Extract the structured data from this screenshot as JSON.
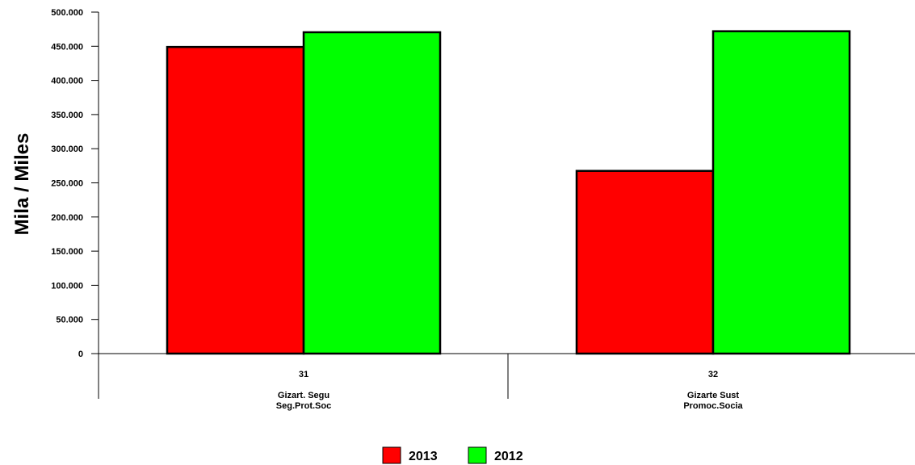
{
  "chart_data": {
    "type": "bar",
    "ylabel": "Mila / Miles",
    "ylim": [
      0,
      500000
    ],
    "yticks": [
      "0",
      "50.000",
      "100.000",
      "150.000",
      "200.000",
      "250.000",
      "300.000",
      "350.000",
      "400.000",
      "450.000",
      "500.000"
    ],
    "yticks_values": [
      0,
      50000,
      100000,
      150000,
      200000,
      250000,
      300000,
      350000,
      400000,
      450000,
      500000
    ],
    "categories": [
      {
        "code": "31",
        "line1": "Gizart. Segu",
        "line2": "Seg.Prot.Soc"
      },
      {
        "code": "32",
        "line1": "Gizarte Sust",
        "line2": "Promoc.Socia"
      }
    ],
    "series": [
      {
        "name": "2013",
        "color": "#ff0000",
        "values": [
          449000,
          267500
        ]
      },
      {
        "name": "2012",
        "color": "#00ff00",
        "values": [
          470500,
          472000
        ]
      }
    ],
    "legend_position": "bottom",
    "grid": false
  }
}
